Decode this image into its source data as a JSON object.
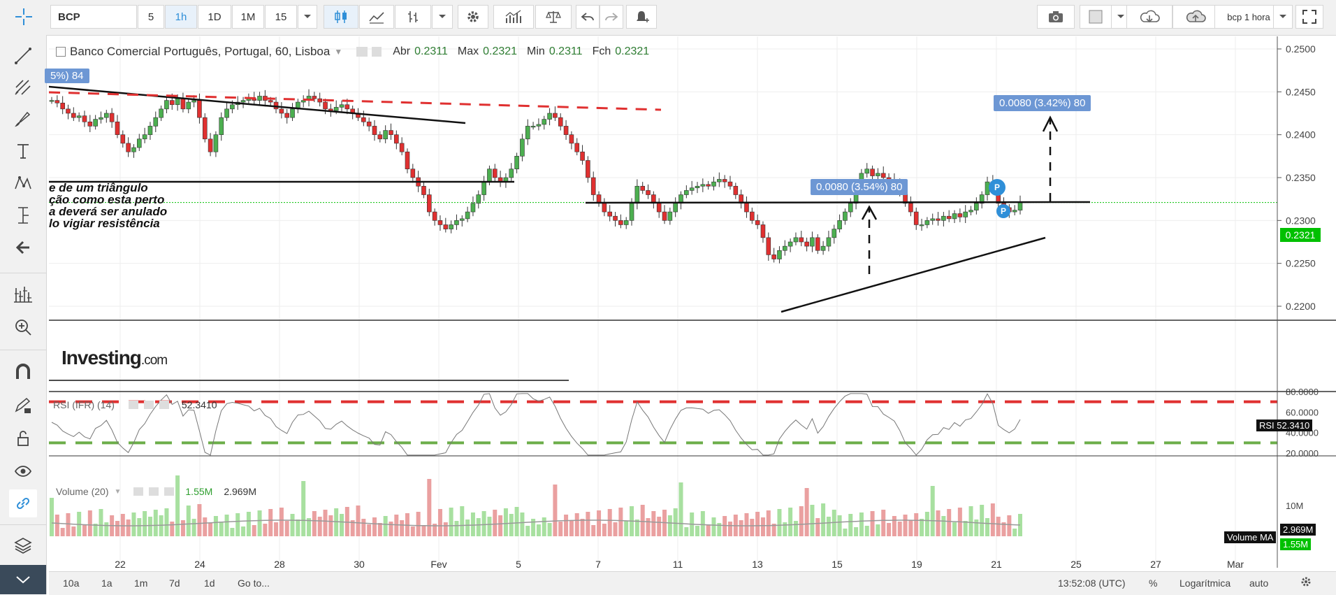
{
  "toolbar": {
    "symbol": "BCP",
    "intervals": [
      "5",
      "1h",
      "1D",
      "1M",
      "15"
    ],
    "active_interval": "1h",
    "layout_name": "bcp 1 hora"
  },
  "legend": {
    "title": "Banco Comercial Português, Portugal, 60, Lisboa",
    "open_label": "Abr",
    "open_value": "0.2311",
    "high_label": "Max",
    "high_value": "0.2321",
    "low_label": "Min",
    "low_value": "0.2311",
    "close_label": "Fch",
    "close_value": "0.2321"
  },
  "price_axis": {
    "labels": [
      "0.2500",
      "0.2450",
      "0.2400",
      "0.2350",
      "0.2300",
      "0.2250",
      "0.2200"
    ],
    "current_price": "0.2321"
  },
  "annotations": {
    "left_badge": "5%) 84",
    "measure_1": "0.0080 (3.54%) 80",
    "measure_2": "0.0080 (3.42%) 80",
    "note_lines": [
      "e de um triângulo",
      "ção como esta perto",
      "a deverá ser anulado",
      "lo vigiar resistência"
    ],
    "p_marker": "P",
    "watermark_main": "Investing",
    "watermark_suffix": ".com"
  },
  "rsi": {
    "label": "RSI (IFR) (14)",
    "value": "52.3410",
    "axis_labels": [
      "80.0000",
      "60.0000",
      "40.0000",
      "20.0000"
    ],
    "tag_label": "RSI",
    "tag_value": "52.3410"
  },
  "volume": {
    "label": "Volume (20)",
    "value_1": "1.55M",
    "value_2": "2.969M",
    "axis_label": "10M",
    "ma_tag": "2.969M",
    "vol_tag_label": "Volume MA",
    "vol_tag_value": "1.55M"
  },
  "time_axis": {
    "labels": [
      "22",
      "24",
      "28",
      "30",
      "Fev",
      "5",
      "7",
      "11",
      "13",
      "15",
      "19",
      "21",
      "25",
      "27",
      "Mar"
    ]
  },
  "bottom": {
    "ranges": [
      "10a",
      "1a",
      "1m",
      "7d",
      "1d"
    ],
    "goto": "Go to...",
    "clock": "13:52:08 (UTC)",
    "percent": "%",
    "log": "Logarítmica",
    "auto": "auto"
  },
  "colors": {
    "up": "#4caf50",
    "down": "#e03030",
    "accent": "#2f8fd8",
    "badge": "#6d97d4",
    "current": "#00c000"
  }
}
